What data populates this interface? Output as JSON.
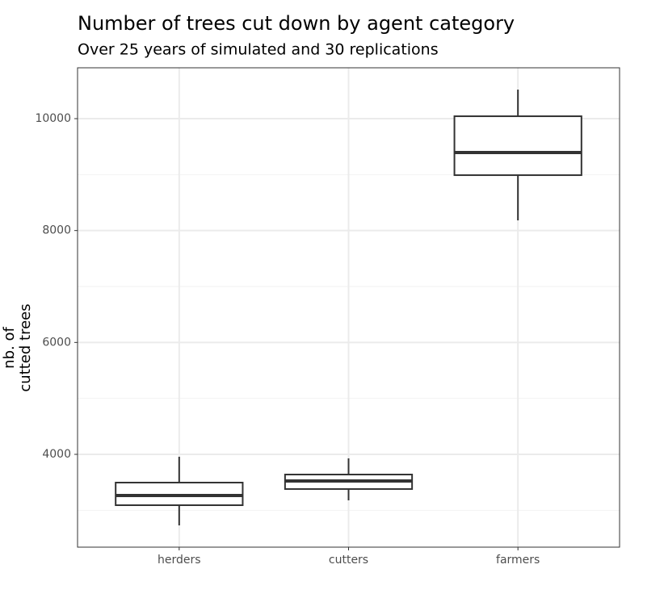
{
  "chart_data": {
    "type": "boxplot",
    "title": "Number of trees cut down by agent category",
    "subtitle": "Over 25 years of simulated and 30 replications",
    "ylabel": [
      "nb. of",
      "cutted trees"
    ],
    "categories": [
      "herders",
      "cutters",
      "farmers"
    ],
    "boxes": [
      {
        "min": 2730,
        "q1": 3091,
        "median": 3264,
        "q3": 3495,
        "max": 3957
      },
      {
        "min": 3178,
        "q1": 3380,
        "median": 3524,
        "q3": 3639,
        "max": 3928
      },
      {
        "min": 8182,
        "q1": 8990,
        "median": 9394,
        "q3": 10043,
        "max": 10519
      }
    ],
    "color": "#333333",
    "ylim": [
      2341,
      10909
    ],
    "yticks": [
      4000,
      6000,
      8000,
      10000
    ],
    "minor_yticks": [
      3000,
      5000,
      7000,
      9000
    ],
    "grid": true
  }
}
